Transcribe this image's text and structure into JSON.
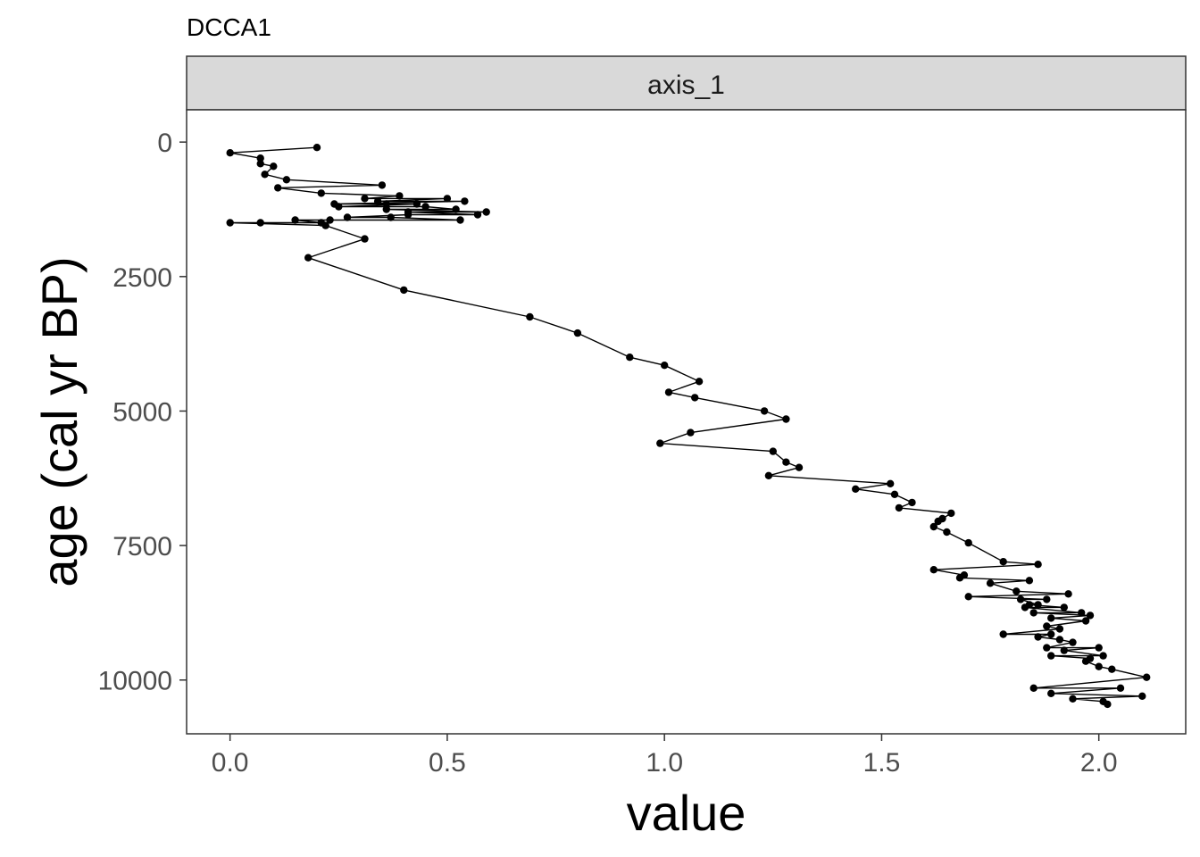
{
  "chart_data": {
    "type": "line",
    "title": "DCCA1",
    "facet_label": "axis_1",
    "xlabel": "value",
    "ylabel": "age (cal yr BP)",
    "xlim": [
      -0.1,
      2.2
    ],
    "ylim": [
      11000,
      -600
    ],
    "y_reversed": true,
    "x_ticks": [
      0.0,
      0.5,
      1.0,
      1.5,
      2.0
    ],
    "x_tick_labels": [
      "0.0",
      "0.5",
      "1.0",
      "1.5",
      "2.0"
    ],
    "y_ticks": [
      0,
      2500,
      5000,
      7500,
      10000
    ],
    "y_tick_labels": [
      "0",
      "2500",
      "5000",
      "7500",
      "10000"
    ],
    "grid": false,
    "legend": "none",
    "line_color": "#000000",
    "point_color": "#000000",
    "series": [
      {
        "x": [
          0.2,
          0.0,
          0.07,
          0.07,
          0.1,
          0.08,
          0.13,
          0.35,
          0.11,
          0.21,
          0.39,
          0.31,
          0.5,
          0.34,
          0.54,
          0.24,
          0.36,
          0.43,
          0.25,
          0.45,
          0.52,
          0.36,
          0.59,
          0.41,
          0.57,
          0.41,
          0.27,
          0.37,
          0.53,
          0.23,
          0.15,
          0.21,
          0.07,
          0.0,
          0.22,
          0.31,
          0.18,
          0.4,
          0.69,
          0.8,
          0.92,
          1.0,
          1.08,
          1.01,
          1.07,
          1.23,
          1.28,
          1.06,
          0.99,
          1.25,
          1.28,
          1.31,
          1.24,
          1.52,
          1.44,
          1.53,
          1.57,
          1.54,
          1.66,
          1.64,
          1.63,
          1.62,
          1.65,
          1.7,
          1.78,
          1.86,
          1.62,
          1.69,
          1.68,
          1.84,
          1.75,
          1.81,
          1.93,
          1.7,
          1.88,
          1.82,
          1.86,
          1.84,
          1.92,
          1.83,
          1.96,
          1.85,
          1.98,
          1.89,
          1.97,
          1.88,
          1.91,
          1.78,
          1.89,
          1.86,
          1.91,
          1.94,
          1.88,
          2.0,
          1.92,
          2.01,
          1.89,
          1.98,
          1.97,
          2.0,
          2.03,
          2.11,
          1.85,
          2.05,
          1.89,
          2.1,
          1.94,
          2.01,
          2.02
        ],
        "y": [
          100,
          200,
          300,
          400,
          450,
          600,
          700,
          800,
          850,
          950,
          1000,
          1050,
          1050,
          1100,
          1100,
          1150,
          1150,
          1150,
          1200,
          1200,
          1250,
          1250,
          1300,
          1300,
          1350,
          1350,
          1400,
          1400,
          1450,
          1450,
          1450,
          1500,
          1500,
          1500,
          1550,
          1800,
          2150,
          2750,
          3250,
          3550,
          4000,
          4150,
          4450,
          4650,
          4750,
          5000,
          5150,
          5400,
          5600,
          5750,
          5950,
          6050,
          6200,
          6350,
          6450,
          6550,
          6700,
          6800,
          6900,
          7000,
          7050,
          7150,
          7250,
          7450,
          7800,
          7850,
          7950,
          8050,
          8100,
          8150,
          8200,
          8350,
          8400,
          8450,
          8500,
          8500,
          8600,
          8600,
          8650,
          8650,
          8750,
          8750,
          8800,
          8850,
          8900,
          9000,
          9050,
          9150,
          9150,
          9200,
          9250,
          9300,
          9400,
          9400,
          9450,
          9550,
          9550,
          9600,
          9650,
          9750,
          9800,
          9950,
          10150,
          10150,
          10250,
          10300,
          10350,
          10400,
          10450
        ]
      }
    ]
  }
}
